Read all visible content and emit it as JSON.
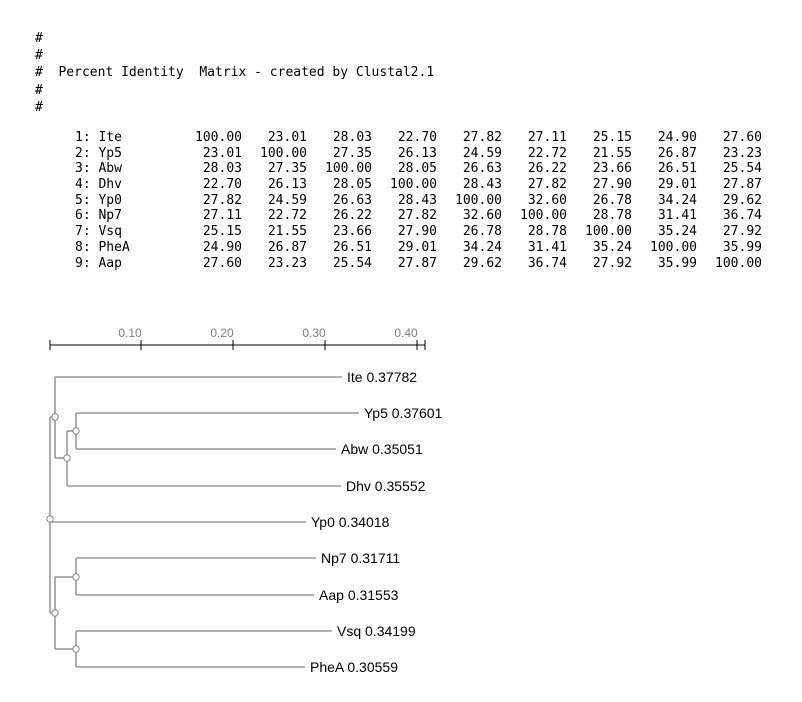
{
  "header": {
    "lines": [
      "#",
      "#",
      "#  Percent Identity  Matrix - created by Clustal2.1",
      "#",
      "#"
    ]
  },
  "matrix": {
    "rows": [
      {
        "label": "1: Ite",
        "values": [
          "100.00",
          "23.01",
          "28.03",
          "22.70",
          "27.82",
          "27.11",
          "25.15",
          "24.90",
          "27.60"
        ]
      },
      {
        "label": "2: Yp5",
        "values": [
          "23.01",
          "100.00",
          "27.35",
          "26.13",
          "24.59",
          "22.72",
          "21.55",
          "26.87",
          "23.23"
        ]
      },
      {
        "label": "3: Abw",
        "values": [
          "28.03",
          "27.35",
          "100.00",
          "28.05",
          "26.63",
          "26.22",
          "23.66",
          "26.51",
          "25.54"
        ]
      },
      {
        "label": "4: Dhv",
        "values": [
          "22.70",
          "26.13",
          "28.05",
          "100.00",
          "28.43",
          "27.82",
          "27.90",
          "29.01",
          "27.87"
        ]
      },
      {
        "label": "5: Yp0",
        "values": [
          "27.82",
          "24.59",
          "26.63",
          "28.43",
          "100.00",
          "32.60",
          "26.78",
          "34.24",
          "29.62"
        ]
      },
      {
        "label": "6: Np7",
        "values": [
          "27.11",
          "22.72",
          "26.22",
          "27.82",
          "32.60",
          "100.00",
          "28.78",
          "31.41",
          "36.74"
        ]
      },
      {
        "label": "7: Vsq",
        "values": [
          "25.15",
          "21.55",
          "23.66",
          "27.90",
          "26.78",
          "28.78",
          "100.00",
          "35.24",
          "27.92"
        ]
      },
      {
        "label": "8: PheA",
        "values": [
          "24.90",
          "26.87",
          "26.51",
          "29.01",
          "34.24",
          "31.41",
          "35.24",
          "100.00",
          "35.99"
        ]
      },
      {
        "label": "9: Aap",
        "values": [
          "27.60",
          "23.23",
          "25.54",
          "27.87",
          "29.62",
          "36.74",
          "27.92",
          "35.99",
          "100.00"
        ]
      }
    ]
  },
  "tree": {
    "scale_ticks": [
      "0.10",
      "0.20",
      "0.30",
      "0.40"
    ],
    "leaves": [
      {
        "name": "Ite",
        "branch": "0.37782"
      },
      {
        "name": "Yp5",
        "branch": "0.37601"
      },
      {
        "name": "Abw",
        "branch": "0.35051"
      },
      {
        "name": "Dhv",
        "branch": "0.35552"
      },
      {
        "name": "Yp0",
        "branch": "0.34018"
      },
      {
        "name": "Np7",
        "branch": "0.31711"
      },
      {
        "name": "Aap",
        "branch": "0.31553"
      },
      {
        "name": "Vsq",
        "branch": "0.34199"
      },
      {
        "name": "PheA",
        "branch": "0.30559"
      }
    ],
    "colors": {
      "line": "#999999",
      "node": "#888888",
      "label": "#000000",
      "tick_label": "#808080"
    }
  }
}
